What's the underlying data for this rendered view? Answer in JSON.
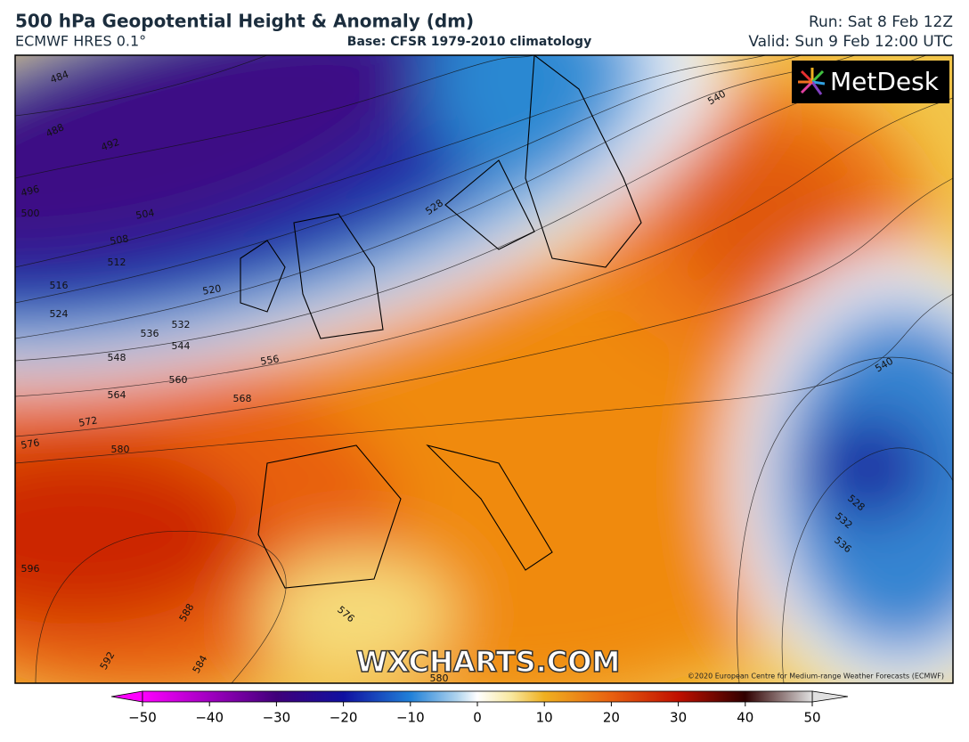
{
  "header": {
    "title": "500 hPa Geopotential Height & Anomaly (dm)",
    "model": "ECMWF HRES 0.1°",
    "base": "Base: CFSR 1979-2010 climatology",
    "run": "Run: Sat 8 Feb 12Z",
    "valid": "Valid: Sun 9 Feb 12:00 UTC"
  },
  "map": {
    "logo": "MetDesk",
    "watermark": "WXCHARTS.COM",
    "copyright": "©2020 European Centre for Medium-range Weather Forecasts (ECMWF)",
    "contour_labels": [
      484,
      488,
      492,
      496,
      500,
      504,
      508,
      512,
      516,
      520,
      524,
      528,
      532,
      536,
      540,
      544,
      548,
      556,
      560,
      564,
      568,
      572,
      576,
      580,
      596,
      588,
      592,
      584,
      576,
      580,
      540,
      528,
      532,
      536
    ]
  },
  "colorbar": {
    "range": [
      -50,
      50
    ],
    "ticks": [
      {
        "value": -50,
        "label": "−50"
      },
      {
        "value": -40,
        "label": "−40"
      },
      {
        "value": -30,
        "label": "−30"
      },
      {
        "value": -20,
        "label": "−20"
      },
      {
        "value": -10,
        "label": "−10"
      },
      0,
      10,
      20,
      30,
      40,
      50
    ]
  }
}
